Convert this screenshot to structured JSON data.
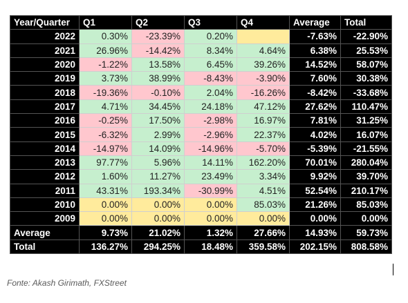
{
  "table": {
    "headers": [
      "Year/Quarter",
      "Q1",
      "Q2",
      "Q3",
      "Q4",
      "Average",
      "Total"
    ],
    "rows": [
      {
        "label": "2022",
        "q": [
          "0.30%",
          "-23.39%",
          "0.20%",
          ""
        ],
        "average": "-7.63%",
        "total": "-22.90%"
      },
      {
        "label": "2021",
        "q": [
          "26.96%",
          "-14.42%",
          "8.34%",
          "4.64%"
        ],
        "average": "6.38%",
        "total": "25.53%"
      },
      {
        "label": "2020",
        "q": [
          "-1.22%",
          "13.58%",
          "6.45%",
          "39.26%"
        ],
        "average": "14.52%",
        "total": "58.07%"
      },
      {
        "label": "2019",
        "q": [
          "3.73%",
          "38.99%",
          "-8.43%",
          "-3.90%"
        ],
        "average": "7.60%",
        "total": "30.38%"
      },
      {
        "label": "2018",
        "q": [
          "-19.36%",
          "-0.10%",
          "2.04%",
          "-16.26%"
        ],
        "average": "-8.42%",
        "total": "-33.68%"
      },
      {
        "label": "2017",
        "q": [
          "4.71%",
          "34.45%",
          "24.18%",
          "47.12%"
        ],
        "average": "27.62%",
        "total": "110.47%"
      },
      {
        "label": "2016",
        "q": [
          "-0.25%",
          "17.50%",
          "-2.98%",
          "16.97%"
        ],
        "average": "7.81%",
        "total": "31.25%"
      },
      {
        "label": "2015",
        "q": [
          "-6.32%",
          "2.99%",
          "-2.96%",
          "22.37%"
        ],
        "average": "4.02%",
        "total": "16.07%"
      },
      {
        "label": "2014",
        "q": [
          "-14.97%",
          "14.09%",
          "-14.96%",
          "-5.70%"
        ],
        "average": "-5.39%",
        "total": "-21.55%"
      },
      {
        "label": "2013",
        "q": [
          "97.77%",
          "5.96%",
          "14.11%",
          "162.20%"
        ],
        "average": "70.01%",
        "total": "280.04%"
      },
      {
        "label": "2012",
        "q": [
          "1.60%",
          "11.27%",
          "23.49%",
          "3.34%"
        ],
        "average": "9.92%",
        "total": "39.70%"
      },
      {
        "label": "2011",
        "q": [
          "43.31%",
          "193.34%",
          "-30.99%",
          "4.51%"
        ],
        "average": "52.54%",
        "total": "210.17%"
      },
      {
        "label": "2010",
        "q": [
          "0.00%",
          "0.00%",
          "0.00%",
          "85.03%"
        ],
        "average": "21.26%",
        "total": "85.03%"
      },
      {
        "label": "2009",
        "q": [
          "0.00%",
          "0.00%",
          "0.00%",
          "0.00%"
        ],
        "average": "0.00%",
        "total": "0.00%"
      }
    ],
    "summary": [
      {
        "label": "Average",
        "q": [
          "9.73%",
          "21.02%",
          "1.32%",
          "27.66%"
        ],
        "average": "14.93%",
        "total": "59.73%"
      },
      {
        "label": "Total",
        "q": [
          "136.27%",
          "294.25%",
          "18.48%",
          "359.58%"
        ],
        "average": "202.15%",
        "total": "808.58%"
      }
    ]
  },
  "caption": "Fonte: Akash Girimath, FXStreet"
}
